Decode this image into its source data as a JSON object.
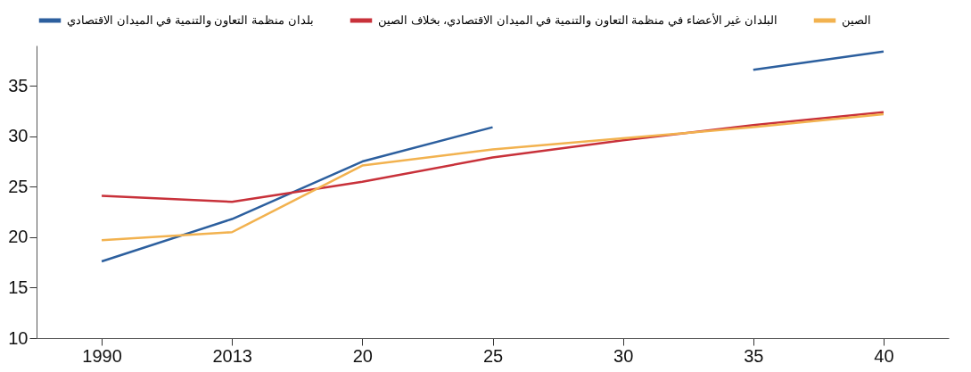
{
  "chart_data": {
    "type": "line",
    "categories": [
      "1990",
      "2013",
      "20",
      "25",
      "30",
      "35",
      "40"
    ],
    "series": [
      {
        "name": "بلدان منظمة التعاون والتنمية في الميدان الاقتصادي",
        "color": "#2c5f9e",
        "values": [
          17.6,
          21.8,
          27.5,
          30.9,
          null,
          36.6,
          38.4
        ]
      },
      {
        "name": "البلدان غير الأعضاء في منظمة التعاون والتنمية في الميدان الاقتصادي، بخلاف الصين",
        "color": "#c8313a",
        "values": [
          24.1,
          23.5,
          25.5,
          27.9,
          29.6,
          31.1,
          32.4
        ]
      },
      {
        "name": "الصين",
        "color": "#f2b24f",
        "values": [
          19.7,
          20.5,
          27.1,
          28.7,
          29.8,
          30.9,
          32.2
        ]
      }
    ],
    "ylim": [
      10,
      39
    ],
    "yticks": [
      10,
      15,
      20,
      25,
      30,
      35
    ],
    "legend": "top",
    "grid": false
  }
}
